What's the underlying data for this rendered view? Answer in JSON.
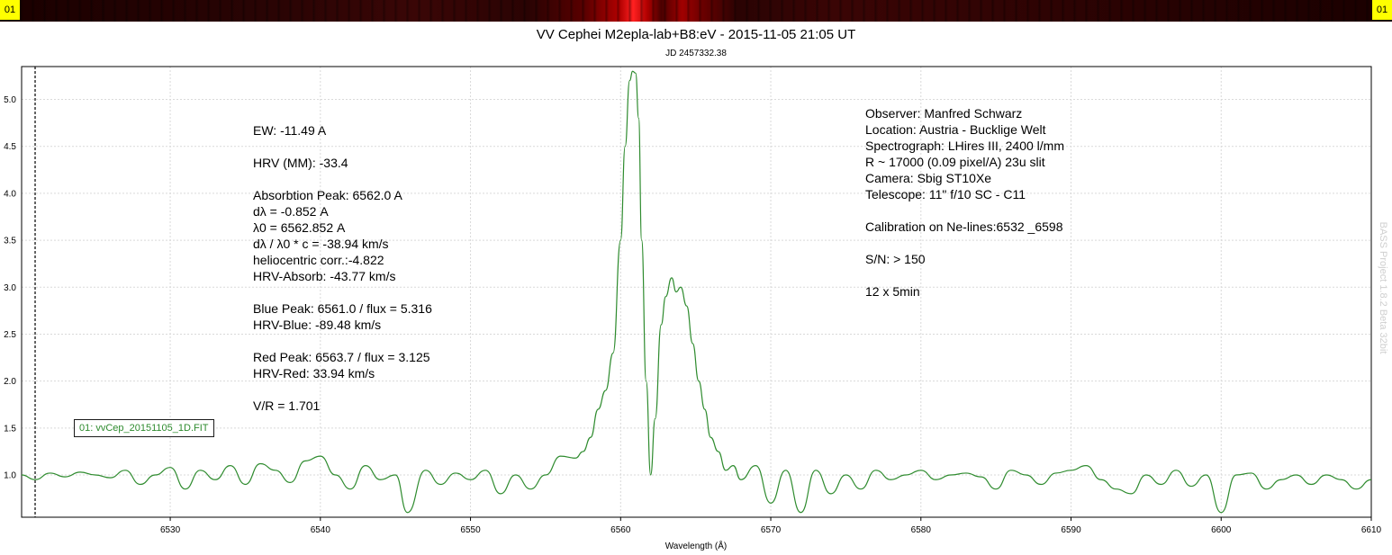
{
  "strip": {
    "left_tag": "01",
    "right_tag": "01"
  },
  "header": {
    "title": "VV Cephei M2epla-lab+B8:eV - 2015-11-05 21:05 UT",
    "subtitle": "JD 2457332.38"
  },
  "legend": {
    "entry": "01: vvCep_20151105_1D.FIT"
  },
  "watermark": "BASS Project 1.8.2 Beta 32bit",
  "annotations_left": [
    "EW: -11.49 A",
    "",
    "HRV (MM): -33.4",
    "",
    "Absorbtion Peak: 6562.0 A",
    "dλ = -0.852 A",
    "λ0 = 6562.852 A",
    "dλ / λ0 * c = -38.94 km/s",
    "heliocentric corr.:-4.822",
    "HRV-Absorb: -43.77 km/s",
    "",
    "Blue Peak: 6561.0 / flux = 5.316",
    "HRV-Blue: -89.48 km/s",
    "",
    "Red Peak: 6563.7 / flux = 3.125",
    "HRV-Red: 33.94 km/s",
    "",
    "V/R = 1.701"
  ],
  "annotations_right": [
    "Observer: Manfred Schwarz",
    "Location: Austria - Bucklige Welt",
    "Spectrograph: LHires III, 2400 l/mm",
    "R ~ 17000 (0.09 pixel/A) 23u slit",
    "Camera: Sbig ST10Xe",
    "Telescope: 11\" f/10 SC - C11",
    "",
    "Calibration on Ne-lines:6532 _6598",
    "",
    "S/N: > 150",
    "",
    "12 x 5min"
  ],
  "colors": {
    "series": "#2e8b2e",
    "grid": "#d9d9d9",
    "marker": "#000000"
  },
  "chart_data": {
    "type": "line",
    "title": "VV Cephei M2epla-lab+B8:eV - 2015-11-05 21:05 UT",
    "subtitle": "JD 2457332.38",
    "xlabel": "Wavelength (Å)",
    "ylabel": "",
    "xlim": [
      6520.1,
      6610
    ],
    "ylim": [
      0.55,
      5.35
    ],
    "xticks": [
      6530,
      6540,
      6550,
      6560,
      6570,
      6580,
      6590,
      6600,
      6610
    ],
    "yticks": [
      1.0,
      1.5,
      2.0,
      2.5,
      3.0,
      3.5,
      4.0,
      4.5,
      5.0
    ],
    "ytick_labels": [
      "1.0",
      "1.5",
      "2.0",
      "2.5",
      "3.0",
      "3.5",
      "4.0",
      "4.5",
      "5.0"
    ],
    "grid": true,
    "marker_line_x": 6521.0,
    "series": [
      {
        "name": "01: vvCep_20151105_1D.FIT",
        "x": [
          6520.1,
          6521.0,
          6522.0,
          6523.0,
          6524.0,
          6525.0,
          6526.0,
          6527.0,
          6528.0,
          6529.0,
          6530.0,
          6531.0,
          6532.0,
          6533.0,
          6534.0,
          6535.0,
          6536.0,
          6537.0,
          6538.0,
          6539.0,
          6540.0,
          6541.0,
          6542.0,
          6543.0,
          6544.0,
          6545.0,
          6545.8,
          6547.0,
          6548.0,
          6549.0,
          6550.0,
          6551.0,
          6552.0,
          6553.0,
          6554.0,
          6555.0,
          6556.0,
          6557.0,
          6557.5,
          6558.0,
          6558.5,
          6559.0,
          6559.5,
          6560.0,
          6560.3,
          6560.6,
          6560.8,
          6561.0,
          6561.2,
          6561.4,
          6561.7,
          6562.0,
          6562.3,
          6562.7,
          6563.0,
          6563.4,
          6563.7,
          6564.0,
          6564.4,
          6564.8,
          6565.2,
          6565.6,
          6566.0,
          6566.5,
          6567.0,
          6567.5,
          6568.0,
          6569.0,
          6570.0,
          6571.0,
          6572.0,
          6573.0,
          6574.0,
          6575.0,
          6576.0,
          6577.0,
          6578.0,
          6579.0,
          6580.0,
          6581.0,
          6582.0,
          6583.0,
          6584.0,
          6585.0,
          6586.0,
          6587.0,
          6588.0,
          6589.0,
          6590.0,
          6591.0,
          6592.0,
          6593.0,
          6594.0,
          6595.0,
          6596.0,
          6597.0,
          6598.0,
          6599.0,
          6600.0,
          6601.0,
          6602.0,
          6603.0,
          6604.0,
          6605.0,
          6606.0,
          6607.0,
          6608.0,
          6609.0,
          6610.0
        ],
        "y": [
          1.0,
          0.95,
          1.02,
          0.98,
          1.03,
          1.0,
          0.97,
          1.05,
          0.9,
          1.0,
          1.08,
          0.85,
          1.05,
          0.95,
          1.1,
          0.9,
          1.12,
          1.05,
          0.92,
          1.15,
          1.2,
          1.0,
          0.85,
          1.1,
          0.95,
          1.0,
          0.6,
          1.05,
          0.9,
          1.02,
          0.95,
          1.05,
          0.8,
          1.0,
          0.85,
          1.0,
          1.2,
          1.18,
          1.25,
          1.4,
          1.7,
          1.9,
          2.3,
          3.5,
          4.5,
          5.2,
          5.3,
          5.28,
          4.8,
          3.5,
          2.0,
          1.0,
          1.6,
          2.6,
          2.9,
          3.1,
          2.95,
          3.0,
          2.8,
          2.4,
          2.0,
          1.7,
          1.4,
          1.25,
          1.05,
          1.1,
          0.95,
          1.1,
          0.7,
          1.05,
          0.6,
          1.05,
          0.8,
          1.0,
          0.85,
          1.05,
          0.95,
          1.0,
          1.05,
          0.95,
          1.0,
          1.02,
          0.98,
          0.85,
          1.05,
          1.0,
          0.9,
          1.02,
          1.05,
          1.1,
          0.95,
          0.85,
          0.8,
          1.0,
          0.9,
          1.05,
          0.88,
          1.0,
          0.6,
          1.0,
          1.02,
          0.85,
          0.95,
          1.0,
          0.9,
          1.0,
          0.95,
          0.85,
          0.95
        ]
      }
    ]
  }
}
